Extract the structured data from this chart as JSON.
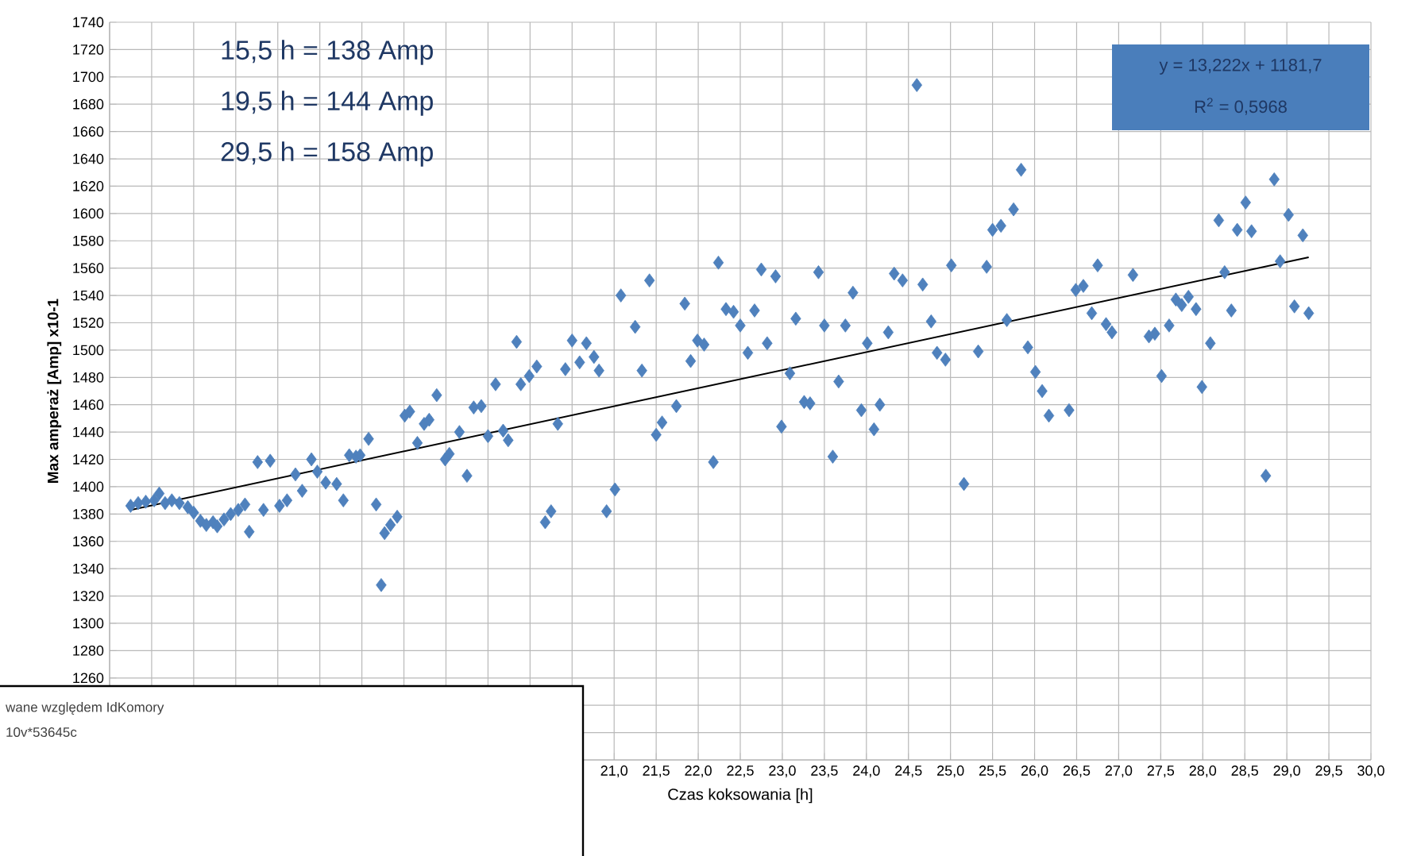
{
  "chart_data": {
    "type": "scatter",
    "xlabel": "Czas koksowania [h]",
    "ylabel": "Max amperaż [Amp] x10-1",
    "xlim": [
      15,
      30
    ],
    "ylim": [
      1200,
      1740
    ],
    "grid": true,
    "marker": "diamond",
    "xticks": [
      {
        "value": 15.0,
        "label": null
      },
      {
        "value": 15.5,
        "label": null
      },
      {
        "value": 16.0,
        "label": null
      },
      {
        "value": 16.5,
        "label": null
      },
      {
        "value": 17.0,
        "label": null
      },
      {
        "value": 17.5,
        "label": null
      },
      {
        "value": 18.0,
        "label": null
      },
      {
        "value": 18.5,
        "label": null
      },
      {
        "value": 19.0,
        "label": null
      },
      {
        "value": 19.5,
        "label": null
      },
      {
        "value": 20.0,
        "label": null
      },
      {
        "value": 20.5,
        "label": null
      },
      {
        "value": 21.0,
        "label": "21,0"
      },
      {
        "value": 21.5,
        "label": "21,5"
      },
      {
        "value": 22.0,
        "label": "22,0"
      },
      {
        "value": 22.5,
        "label": "22,5"
      },
      {
        "value": 23.0,
        "label": "23,0"
      },
      {
        "value": 23.5,
        "label": "23,5"
      },
      {
        "value": 24.0,
        "label": "24,0"
      },
      {
        "value": 24.5,
        "label": "24,5"
      },
      {
        "value": 25.0,
        "label": "25,0"
      },
      {
        "value": 25.5,
        "label": "25,5"
      },
      {
        "value": 26.0,
        "label": "26,0"
      },
      {
        "value": 26.5,
        "label": "26,5"
      },
      {
        "value": 27.0,
        "label": "27,0"
      },
      {
        "value": 27.5,
        "label": "27,5"
      },
      {
        "value": 28.0,
        "label": "28,0"
      },
      {
        "value": 28.5,
        "label": "28,5"
      },
      {
        "value": 29.0,
        "label": "29,0"
      },
      {
        "value": 29.5,
        "label": "29,5"
      },
      {
        "value": 30.0,
        "label": "30,0"
      }
    ],
    "yticks": [
      {
        "value": 1200,
        "label": null
      },
      {
        "value": 1220,
        "label": null
      },
      {
        "value": 1240,
        "label": null
      },
      1260,
      1280,
      1300,
      1320,
      1340,
      1360,
      1380,
      1400,
      1420,
      1440,
      1460,
      1480,
      1500,
      1520,
      1540,
      1560,
      1580,
      1600,
      1620,
      1640,
      1660,
      1680,
      1700,
      1720,
      1740
    ],
    "series": [
      {
        "type": "scatter",
        "color": "#4f81bd",
        "x": [
          15.25,
          15.34,
          15.43,
          15.53,
          15.59,
          15.66,
          15.74,
          15.83,
          15.93,
          16.0,
          16.08,
          16.15,
          16.23,
          16.28,
          16.36,
          16.44,
          16.53,
          16.61,
          16.66,
          16.76,
          16.83,
          16.91,
          17.02,
          17.11,
          17.21,
          17.29,
          17.4,
          17.47,
          17.57,
          17.7,
          17.78,
          17.85,
          17.93,
          17.98,
          18.08,
          18.17,
          18.23,
          18.27,
          18.34,
          18.42,
          18.51,
          18.57,
          18.66,
          18.74,
          18.8,
          18.89,
          18.99,
          19.04,
          19.16,
          19.25,
          19.33,
          19.42,
          19.5,
          19.59,
          19.68,
          19.74,
          19.84,
          19.89,
          19.99,
          20.08,
          20.18,
          20.25,
          20.33,
          20.42,
          20.5,
          20.59,
          20.67,
          20.76,
          20.82,
          20.91,
          21.01,
          21.08,
          21.25,
          21.33,
          21.42,
          21.5,
          21.57,
          21.74,
          21.84,
          21.91,
          21.99,
          22.07,
          22.18,
          22.24,
          22.33,
          22.42,
          22.5,
          22.59,
          22.67,
          22.75,
          22.82,
          22.92,
          22.99,
          23.09,
          23.16,
          23.26,
          23.33,
          23.43,
          23.5,
          23.6,
          23.67,
          23.75,
          23.84,
          23.94,
          24.01,
          24.09,
          24.16,
          24.26,
          24.33,
          24.43,
          24.6,
          24.67,
          24.77,
          24.84,
          24.94,
          25.01,
          25.16,
          25.33,
          25.43,
          25.5,
          25.6,
          25.67,
          25.75,
          25.84,
          25.92,
          26.01,
          26.09,
          26.17,
          26.41,
          26.49,
          26.58,
          26.68,
          26.75,
          26.85,
          26.92,
          27.17,
          27.36,
          27.43,
          27.51,
          27.6,
          27.68,
          27.75,
          27.83,
          27.92,
          27.99,
          28.09,
          28.19,
          28.26,
          28.34,
          28.41,
          28.51,
          28.58,
          28.75,
          28.85,
          28.92,
          29.02,
          29.09,
          29.19,
          29.26
        ],
        "values": [
          1386,
          1388,
          1389,
          1390,
          1395,
          1388,
          1390,
          1388,
          1385,
          1381,
          1375,
          1372,
          1374,
          1371,
          1376,
          1380,
          1383,
          1387,
          1367,
          1418,
          1383,
          1419,
          1386,
          1390,
          1409,
          1397,
          1420,
          1411,
          1403,
          1402,
          1390,
          1423,
          1422,
          1423,
          1435,
          1387,
          1328,
          1366,
          1372,
          1378,
          1452,
          1455,
          1432,
          1446,
          1449,
          1467,
          1420,
          1424,
          1440,
          1408,
          1458,
          1459,
          1437,
          1475,
          1441,
          1434,
          1506,
          1475,
          1481,
          1488,
          1374,
          1382,
          1446,
          1486,
          1507,
          1491,
          1505,
          1495,
          1485,
          1382,
          1398,
          1540,
          1517,
          1485,
          1551,
          1438,
          1447,
          1459,
          1534,
          1492,
          1507,
          1504,
          1418,
          1564,
          1530,
          1528,
          1518,
          1498,
          1529,
          1559,
          1505,
          1554,
          1444,
          1483,
          1523,
          1462,
          1461,
          1557,
          1518,
          1422,
          1477,
          1518,
          1542,
          1456,
          1505,
          1442,
          1460,
          1513,
          1556,
          1551,
          1694,
          1548,
          1521,
          1498,
          1493,
          1562,
          1402,
          1499,
          1561,
          1588,
          1591,
          1522,
          1603,
          1632,
          1502,
          1484,
          1470,
          1452,
          1456,
          1544,
          1547,
          1527,
          1562,
          1519,
          1513,
          1555,
          1510,
          1512,
          1481,
          1518,
          1537,
          1533,
          1539,
          1530,
          1473,
          1505,
          1595,
          1557,
          1529,
          1588,
          1608,
          1587,
          1408,
          1625,
          1565,
          1599,
          1532,
          1584,
          1527
        ]
      },
      {
        "type": "line",
        "color": "#000000",
        "marker": "none",
        "x": [
          15.25,
          29.26
        ],
        "values": [
          1383,
          1568
        ]
      }
    ],
    "annotations": [
      "15,5 h = 138 Amp",
      "19,5 h = 144 Amp",
      "29,5 h = 158 Amp",
      "y = 13,222x + 1181,7",
      "R$^{2}$ = 0,5968",
      "wane względem IdKomory",
      "10v*53645c"
    ]
  }
}
